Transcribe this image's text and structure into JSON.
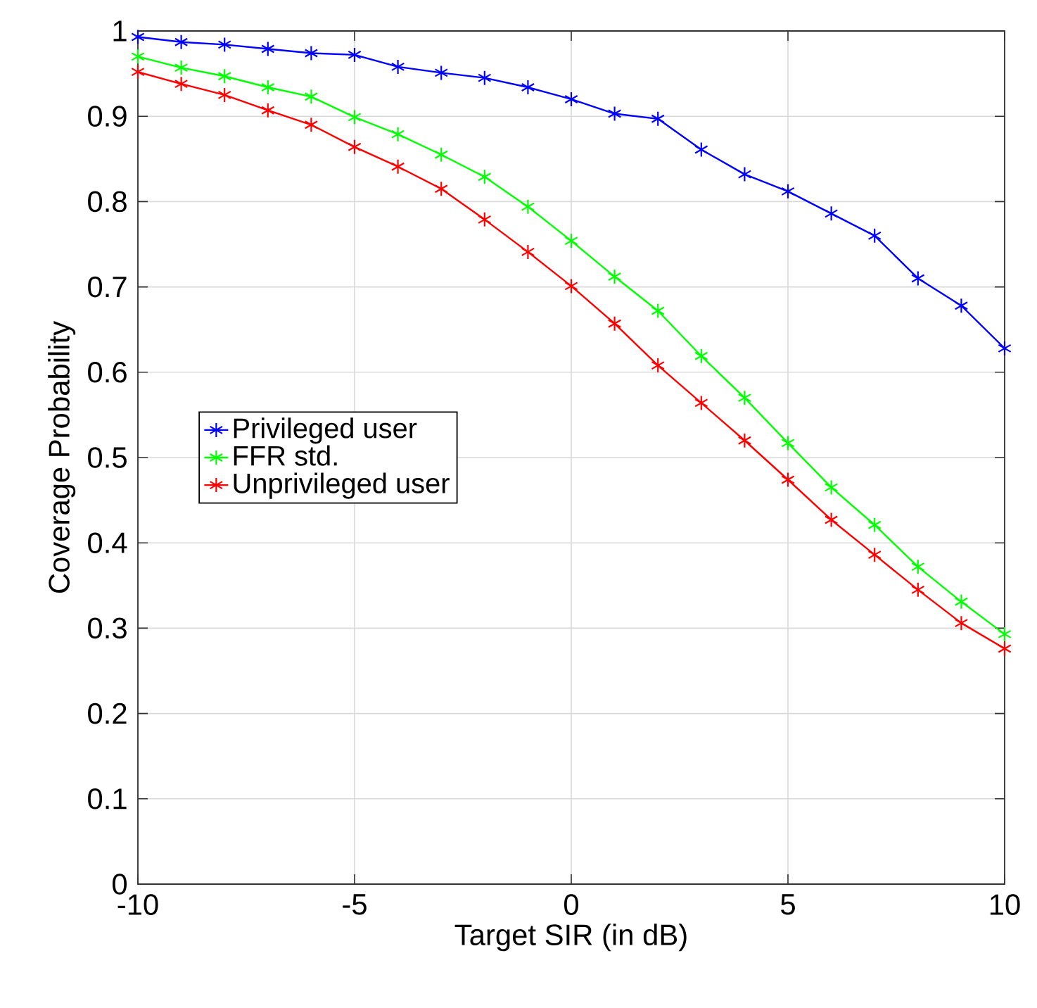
{
  "chart_data": {
    "type": "line",
    "xlabel": "Target SIR (in dB)",
    "ylabel": "Coverage Probability",
    "x": [
      -10,
      -9,
      -8,
      -7,
      -6,
      -5,
      -4,
      -3,
      -2,
      -1,
      0,
      1,
      2,
      3,
      4,
      5,
      6,
      7,
      8,
      9,
      10
    ],
    "series": [
      {
        "name": "Privileged user",
        "color": "#0000ff",
        "values": [
          0.993,
          0.987,
          0.984,
          0.979,
          0.974,
          0.972,
          0.958,
          0.951,
          0.945,
          0.934,
          0.92,
          0.903,
          0.897,
          0.861,
          0.832,
          0.812,
          0.786,
          0.76,
          0.71,
          0.678,
          0.628
        ]
      },
      {
        "name": "FFR std.",
        "color": "#00ff00",
        "values": [
          0.97,
          0.957,
          0.947,
          0.934,
          0.923,
          0.899,
          0.879,
          0.855,
          0.829,
          0.794,
          0.754,
          0.712,
          0.672,
          0.619,
          0.57,
          0.517,
          0.465,
          0.421,
          0.372,
          0.331,
          0.293
        ]
      },
      {
        "name": "Unprivileged user",
        "color": "#ff0000",
        "values": [
          0.952,
          0.938,
          0.925,
          0.907,
          0.89,
          0.864,
          0.841,
          0.815,
          0.779,
          0.741,
          0.701,
          0.657,
          0.608,
          0.564,
          0.52,
          0.474,
          0.427,
          0.386,
          0.345,
          0.306,
          0.276
        ]
      }
    ],
    "xlim": [
      -10,
      10
    ],
    "ylim": [
      0,
      1
    ],
    "xticks": [
      -10,
      -5,
      0,
      5,
      10
    ],
    "yticks": [
      0,
      0.1,
      0.2,
      0.3,
      0.4,
      0.5,
      0.6,
      0.7,
      0.8,
      0.9,
      1
    ],
    "grid": true,
    "legend": "left",
    "marker": "cross",
    "line_style": "solid"
  }
}
